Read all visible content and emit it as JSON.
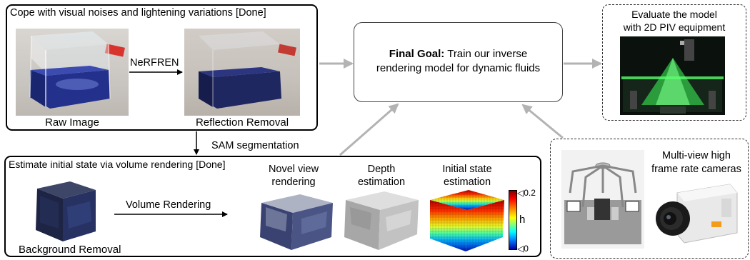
{
  "top_box": {
    "title": "Cope with visual noises and lightening variations [Done]",
    "raw_caption": "Raw Image",
    "method_label": "NeRFREN",
    "removed_caption": "Reflection Removal"
  },
  "sam_label": "SAM segmentation",
  "bottom_box": {
    "title": "Estimate initial state via volume rendering [Done]",
    "bg_caption": "Background Removal",
    "vr_label": "Volume Rendering",
    "novel_line1": "Novel view",
    "novel_line2": "rendering",
    "depth_line1": "Depth",
    "depth_line2": "estimation",
    "init_line1": "Initial state",
    "init_line2": "estimation",
    "colorbar_max": "◁0.2",
    "colorbar_min": "◁0",
    "colorbar_label": "h"
  },
  "goal": {
    "bold": "Final Goal:",
    "line1_rest": " Train our inverse",
    "line2": "rendering model for dynamic fluids"
  },
  "evaluate": {
    "line1": "Evaluate the model",
    "line2": "with 2D PIV equipment"
  },
  "cameras": {
    "line1": "Multi-view high",
    "line2": "frame rate cameras"
  },
  "colors": {
    "arrow_gray": "#b3b3b3",
    "fluid_blue": "#23308c",
    "laser_green": "#3cff5a"
  }
}
